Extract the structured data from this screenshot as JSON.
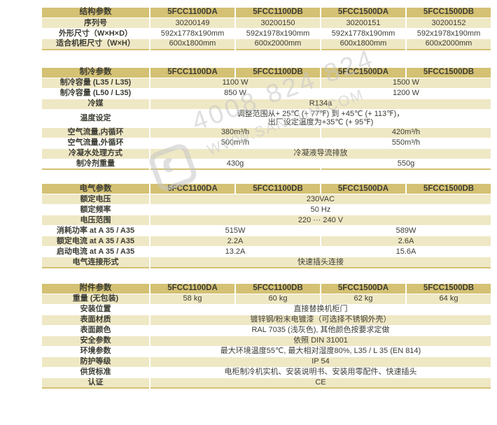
{
  "colors": {
    "header_bg": "#d4c173",
    "row_alt_bg": "#efe8c5",
    "row_bg": "#ffffff",
    "text": "#3c3c34",
    "watermark": "#c6c6c6"
  },
  "watermark": {
    "phone": "4008 824 824",
    "website": "WWW.SANSUM.COM"
  },
  "tables": [
    {
      "id": "structure",
      "title": "结构参数",
      "columns": [
        "5FCC1100DA",
        "5FCC1100DB",
        "5FCC1500DA",
        "5FCC1500DB"
      ],
      "rows": [
        {
          "label": "序列号",
          "cells": [
            {
              "text": "30200149",
              "span": 1
            },
            {
              "text": "30200150",
              "span": 1
            },
            {
              "text": "30200151",
              "span": 1
            },
            {
              "text": "30200152",
              "span": 1
            }
          ]
        },
        {
          "label": "外形尺寸（W×H×D）",
          "cells": [
            {
              "text": "592x1778x190mm",
              "span": 1
            },
            {
              "text": "592x1978x190mm",
              "span": 1
            },
            {
              "text": "592x1778x190mm",
              "span": 1
            },
            {
              "text": "592x1978x190mm",
              "span": 1
            }
          ]
        },
        {
          "label": "适合机柜尺寸（W×H）",
          "cells": [
            {
              "text": "600x1800mm",
              "span": 1
            },
            {
              "text": "600x2000mm",
              "span": 1
            },
            {
              "text": "600x1800mm",
              "span": 1
            },
            {
              "text": "600x2000mm",
              "span": 1
            }
          ]
        }
      ]
    },
    {
      "id": "cooling",
      "title": "制冷参数",
      "columns": [
        "5FCC1100DA",
        "5FCC1100DB",
        "5FCC1500DA",
        "5FCC1500DB"
      ],
      "rows": [
        {
          "label": "制冷容量 (L35 / L35)",
          "cells": [
            {
              "text": "1100 W",
              "span": 2
            },
            {
              "text": "1500 W",
              "span": 2
            }
          ]
        },
        {
          "label": "制冷容量 (L50 / L35)",
          "cells": [
            {
              "text": "850 W",
              "span": 2
            },
            {
              "text": "1200 W",
              "span": 2
            }
          ]
        },
        {
          "label": "冷媒",
          "cells": [
            {
              "text": "R134a",
              "span": 4
            }
          ]
        },
        {
          "label": "温度设定",
          "cells": [
            {
              "text": "调整范围从+ 25℃ (+ 77℉) 到 +45℃ (+ 113℉)，\n出厂设定温度为+35℃ (+ 95℉)",
              "span": 4
            }
          ]
        },
        {
          "label": "空气流量,内循环",
          "cells": [
            {
              "text": "380m³/h",
              "span": 2
            },
            {
              "text": "420m³/h",
              "span": 2
            }
          ]
        },
        {
          "label": "空气流量,外循环",
          "cells": [
            {
              "text": "500m³/h",
              "span": 2
            },
            {
              "text": "550m³/h",
              "span": 2
            }
          ]
        },
        {
          "label": "冷凝水处理方式",
          "cells": [
            {
              "text": "冷凝液导流排放",
              "span": 4
            }
          ]
        },
        {
          "label": "制冷剂重量",
          "cells": [
            {
              "text": "430g",
              "span": 2
            },
            {
              "text": "550g",
              "span": 2
            }
          ]
        }
      ]
    },
    {
      "id": "electrical",
      "title": "电气参数",
      "columns": [
        "5FCC1100DA",
        "5FCC1100DB",
        "5FCC1500DA",
        "5FCC1500DB"
      ],
      "rows": [
        {
          "label": "额定电压",
          "cells": [
            {
              "text": "230VAC",
              "span": 4
            }
          ]
        },
        {
          "label": "额定频率",
          "cells": [
            {
              "text": "50 Hz",
              "span": 4
            }
          ]
        },
        {
          "label": "电压范围",
          "cells": [
            {
              "text": "220 ··· 240 V",
              "span": 4
            }
          ]
        },
        {
          "label": "消耗功率 at A 35 / A35",
          "cells": [
            {
              "text": "515W",
              "span": 2
            },
            {
              "text": "589W",
              "span": 2
            }
          ]
        },
        {
          "label": "额定电流 at A 35 / A35",
          "cells": [
            {
              "text": "2.2A",
              "span": 2
            },
            {
              "text": "2.6A",
              "span": 2
            }
          ]
        },
        {
          "label": "启动电流 at A 35 / A35",
          "cells": [
            {
              "text": "13.2A",
              "span": 2
            },
            {
              "text": "15.6A",
              "span": 2
            }
          ]
        },
        {
          "label": "电气连接形式",
          "cells": [
            {
              "text": "快速插头连接",
              "span": 4
            }
          ]
        }
      ]
    },
    {
      "id": "accessory",
      "title": "附件参数",
      "columns": [
        "5FCC1100DA",
        "5FCC1100DB",
        "5FCC1500DA",
        "5FCC1500DB"
      ],
      "rows": [
        {
          "label": "重量 (无包装)",
          "cells": [
            {
              "text": "58 kg",
              "span": 1
            },
            {
              "text": "60 kg",
              "span": 1
            },
            {
              "text": "62 kg",
              "span": 1
            },
            {
              "text": "64 kg",
              "span": 1
            }
          ]
        },
        {
          "label": "安装位置",
          "cells": [
            {
              "text": "直接替换机柜门",
              "span": 4
            }
          ]
        },
        {
          "label": "表面材质",
          "cells": [
            {
              "text": "镀锌钢/粉末电镀漆（可选择不锈钢外壳）",
              "span": 4
            }
          ]
        },
        {
          "label": "表面颜色",
          "cells": [
            {
              "text": "RAL 7035 (浅灰色), 其他颜色按要求定做",
              "span": 4
            }
          ]
        },
        {
          "label": "安全参数",
          "cells": [
            {
              "text": "依照 DIN 31001",
              "span": 4
            }
          ]
        },
        {
          "label": "环境参数",
          "cells": [
            {
              "text": "最大环境温度55℃, 最大相对湿度80%, L35 / L 35 (EN 814)",
              "span": 4
            }
          ]
        },
        {
          "label": "防护等级",
          "cells": [
            {
              "text": "IP 54",
              "span": 4
            }
          ]
        },
        {
          "label": "供货标准",
          "cells": [
            {
              "text": "电柜制冷机实机、安装说明书、安装用零配件、快速插头",
              "span": 4
            }
          ]
        },
        {
          "label": "认证",
          "cells": [
            {
              "text": "CE",
              "span": 4
            }
          ]
        }
      ]
    }
  ]
}
